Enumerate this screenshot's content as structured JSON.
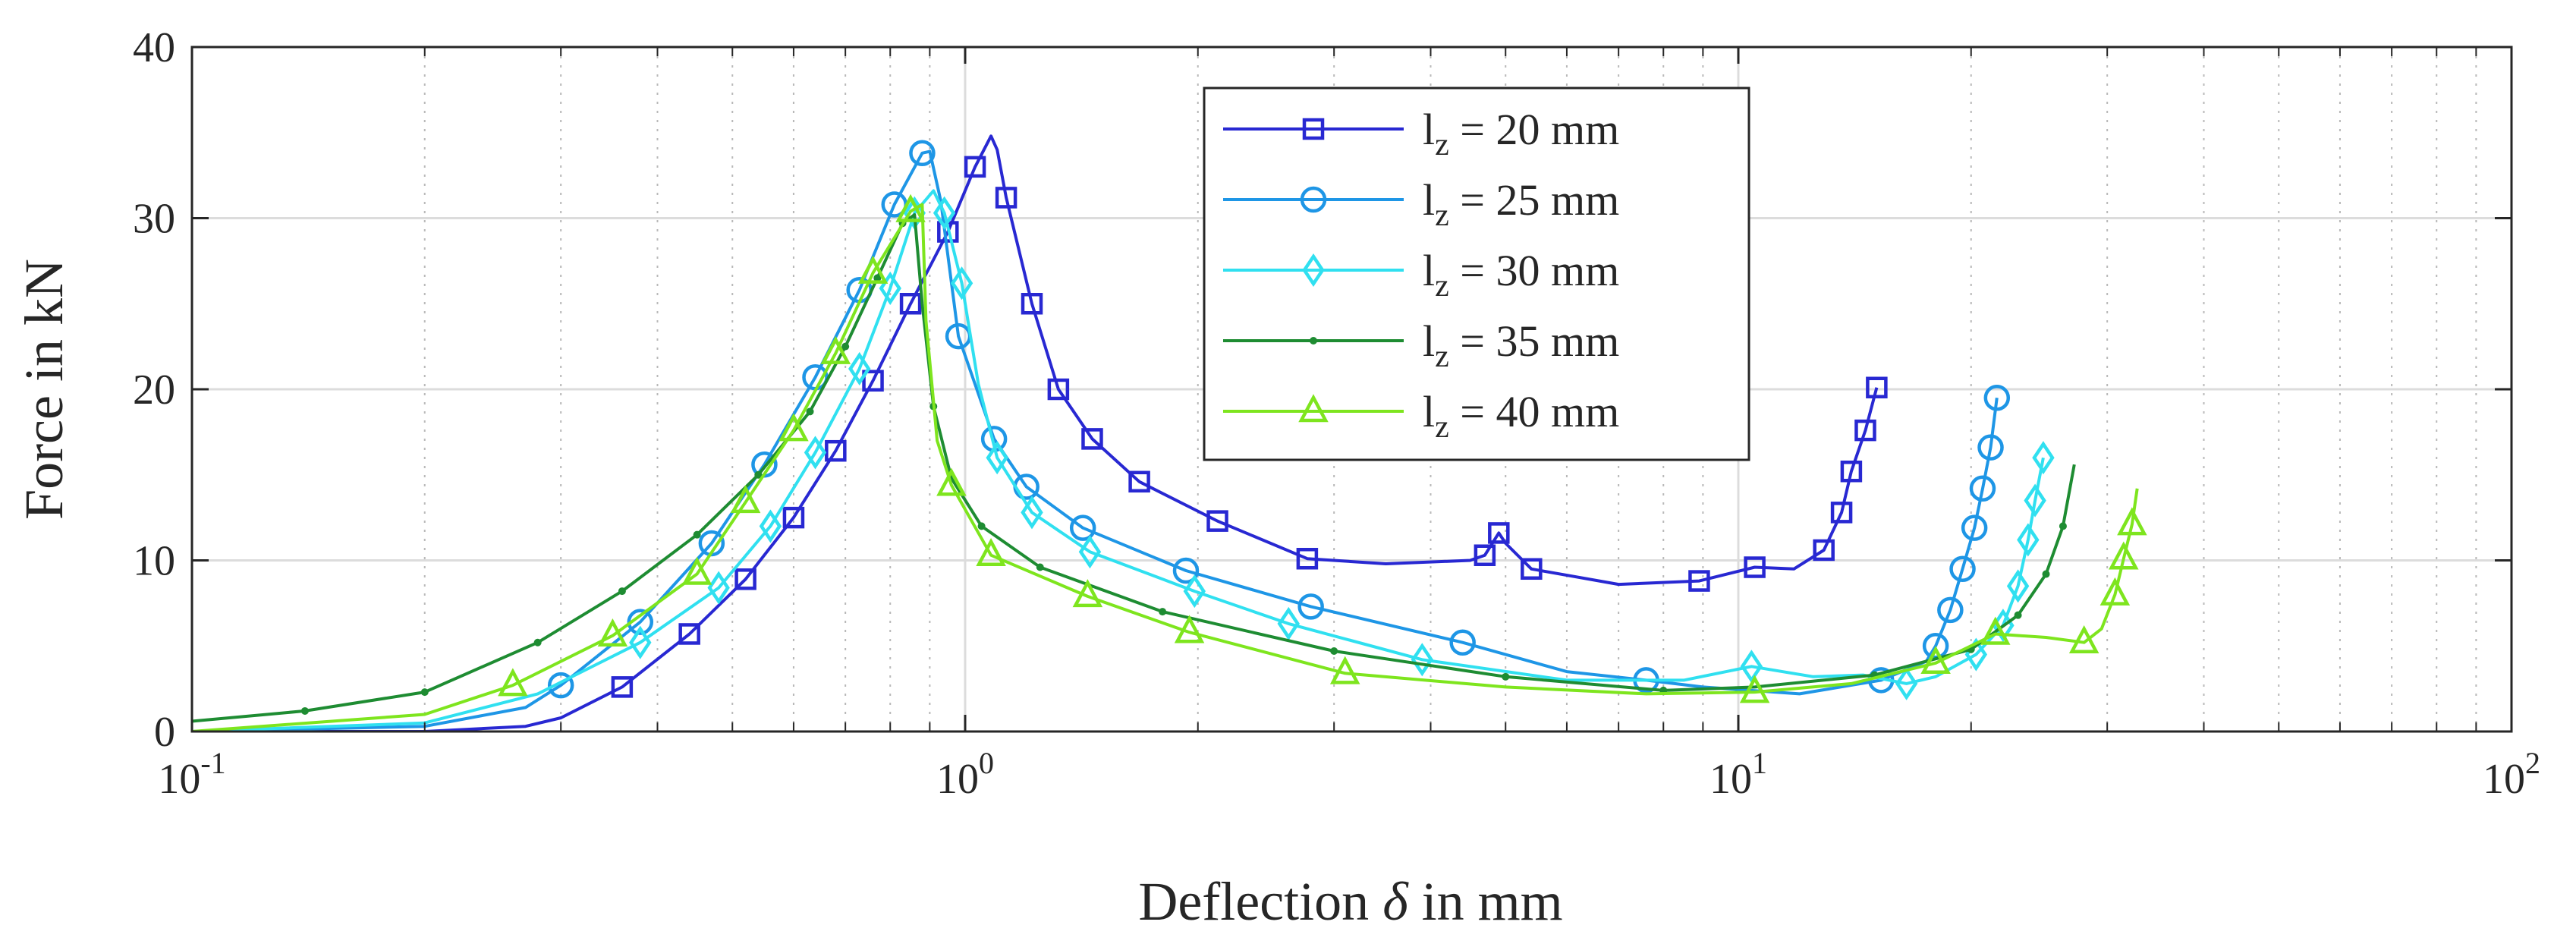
{
  "chart_data": {
    "type": "line",
    "xscale": "log",
    "xlim": [
      0.1,
      100
    ],
    "ylim": [
      0,
      40
    ],
    "grid": true,
    "legend_position": "top-center",
    "xlabel_prefix": "Deflection",
    "xlabel_symbol": "δ",
    "xlabel_suffix": "in mm",
    "ylabel": "Force in kN",
    "x_ticks": [
      {
        "value": 0.1,
        "base": "10",
        "exp": "-1"
      },
      {
        "value": 1,
        "base": "10",
        "exp": "0"
      },
      {
        "value": 10,
        "base": "10",
        "exp": "1"
      },
      {
        "value": 100,
        "base": "10",
        "exp": "2"
      }
    ],
    "y_ticks": [
      {
        "value": 0,
        "label": "0"
      },
      {
        "value": 10,
        "label": "10"
      },
      {
        "value": 20,
        "label": "20"
      },
      {
        "value": 30,
        "label": "30"
      },
      {
        "value": 40,
        "label": "40"
      }
    ],
    "series": [
      {
        "name": "lz = 20 mm",
        "legend_main": "l",
        "legend_sub": "z",
        "legend_rest": " = 20 mm",
        "color": "#2828d2",
        "marker": "square",
        "points": [
          [
            0.1,
            0
          ],
          [
            0.2,
            0
          ],
          [
            0.27,
            0.3
          ],
          [
            0.3,
            0.8
          ],
          [
            0.36,
            2.6
          ],
          [
            0.44,
            5.7
          ],
          [
            0.52,
            8.9
          ],
          [
            0.6,
            12.5
          ],
          [
            0.68,
            16.4
          ],
          [
            0.76,
            20.5
          ],
          [
            0.85,
            25
          ],
          [
            0.95,
            29.2
          ],
          [
            1.03,
            33
          ],
          [
            1.08,
            34.8
          ],
          [
            1.1,
            34
          ],
          [
            1.13,
            31.2
          ],
          [
            1.22,
            25
          ],
          [
            1.32,
            20
          ],
          [
            1.46,
            17.1
          ],
          [
            1.68,
            14.6
          ],
          [
            2.12,
            12.3
          ],
          [
            2.77,
            10.1
          ],
          [
            3.5,
            9.8
          ],
          [
            4.5,
            10
          ],
          [
            4.7,
            10.3
          ],
          [
            4.9,
            11.6
          ],
          [
            5,
            11
          ],
          [
            5.4,
            9.5
          ],
          [
            7,
            8.6
          ],
          [
            8.9,
            8.8
          ],
          [
            10.5,
            9.6
          ],
          [
            11.8,
            9.5
          ],
          [
            12.9,
            10.6
          ],
          [
            13.6,
            12.8
          ],
          [
            14,
            15.2
          ],
          [
            14.6,
            17.6
          ],
          [
            15.1,
            20.1
          ]
        ],
        "markers": [
          [
            0.36,
            2.6
          ],
          [
            0.44,
            5.7
          ],
          [
            0.52,
            8.9
          ],
          [
            0.6,
            12.5
          ],
          [
            0.68,
            16.4
          ],
          [
            0.76,
            20.5
          ],
          [
            0.85,
            25
          ],
          [
            0.95,
            29.2
          ],
          [
            1.03,
            33
          ],
          [
            1.13,
            31.2
          ],
          [
            1.22,
            25
          ],
          [
            1.32,
            20
          ],
          [
            1.46,
            17.1
          ],
          [
            1.68,
            14.6
          ],
          [
            2.12,
            12.3
          ],
          [
            2.77,
            10.1
          ],
          [
            4.7,
            10.3
          ],
          [
            4.9,
            11.6
          ],
          [
            5.4,
            9.5
          ],
          [
            8.9,
            8.8
          ],
          [
            10.5,
            9.6
          ],
          [
            12.9,
            10.6
          ],
          [
            13.6,
            12.8
          ],
          [
            14,
            15.2
          ],
          [
            14.6,
            17.6
          ],
          [
            15.1,
            20.1
          ]
        ]
      },
      {
        "name": "lz = 25 mm",
        "legend_main": "l",
        "legend_sub": "z",
        "legend_rest": " = 25 mm",
        "color": "#1e96e6",
        "marker": "circle",
        "points": [
          [
            0.1,
            0
          ],
          [
            0.2,
            0.3
          ],
          [
            0.27,
            1.4
          ],
          [
            0.3,
            2.7
          ],
          [
            0.38,
            6.4
          ],
          [
            0.47,
            11
          ],
          [
            0.55,
            15.6
          ],
          [
            0.64,
            20.7
          ],
          [
            0.73,
            25.8
          ],
          [
            0.81,
            30.8
          ],
          [
            0.88,
            33.8
          ],
          [
            0.9,
            33.9
          ],
          [
            0.93,
            31
          ],
          [
            0.98,
            23.1
          ],
          [
            1.09,
            17.1
          ],
          [
            1.2,
            14.3
          ],
          [
            1.42,
            11.9
          ],
          [
            1.93,
            9.4
          ],
          [
            2.8,
            7.3
          ],
          [
            4.4,
            5.2
          ],
          [
            6,
            3.5
          ],
          [
            7.6,
            3
          ],
          [
            9,
            2.6
          ],
          [
            12,
            2.2
          ],
          [
            15.3,
            3
          ],
          [
            17.5,
            4.1
          ],
          [
            18,
            5
          ],
          [
            18.8,
            7.1
          ],
          [
            19.5,
            9.5
          ],
          [
            20.2,
            11.9
          ],
          [
            20.7,
            14.2
          ],
          [
            21.2,
            16.6
          ],
          [
            21.6,
            19.5
          ]
        ],
        "markers": [
          [
            0.3,
            2.7
          ],
          [
            0.38,
            6.4
          ],
          [
            0.47,
            11
          ],
          [
            0.55,
            15.6
          ],
          [
            0.64,
            20.7
          ],
          [
            0.73,
            25.8
          ],
          [
            0.81,
            30.8
          ],
          [
            0.88,
            33.8
          ],
          [
            0.98,
            23.1
          ],
          [
            1.09,
            17.1
          ],
          [
            1.2,
            14.3
          ],
          [
            1.42,
            11.9
          ],
          [
            1.93,
            9.4
          ],
          [
            2.8,
            7.3
          ],
          [
            4.4,
            5.2
          ],
          [
            7.6,
            3
          ],
          [
            15.3,
            3
          ],
          [
            18,
            5
          ],
          [
            18.8,
            7.1
          ],
          [
            19.5,
            9.5
          ],
          [
            20.2,
            11.9
          ],
          [
            20.7,
            14.2
          ],
          [
            21.2,
            16.6
          ],
          [
            21.6,
            19.5
          ]
        ]
      },
      {
        "name": "lz = 30 mm",
        "legend_main": "l",
        "legend_sub": "z",
        "legend_rest": " = 30 mm",
        "color": "#30e0f0",
        "marker": "diamond",
        "points": [
          [
            0.1,
            0
          ],
          [
            0.2,
            0.5
          ],
          [
            0.28,
            2.2
          ],
          [
            0.38,
            5.2
          ],
          [
            0.48,
            8.4
          ],
          [
            0.56,
            12
          ],
          [
            0.64,
            16.3
          ],
          [
            0.73,
            21.2
          ],
          [
            0.8,
            25.9
          ],
          [
            0.86,
            30.3
          ],
          [
            0.91,
            31.6
          ],
          [
            0.94,
            30.3
          ],
          [
            0.99,
            26.2
          ],
          [
            1.04,
            20.3
          ],
          [
            1.1,
            16
          ],
          [
            1.22,
            12.8
          ],
          [
            1.45,
            10.5
          ],
          [
            1.98,
            8.2
          ],
          [
            2.62,
            6.3
          ],
          [
            3.9,
            4.2
          ],
          [
            6,
            3
          ],
          [
            8.5,
            3
          ],
          [
            10.4,
            3.8
          ],
          [
            12.5,
            3.2
          ],
          [
            14.5,
            3.3
          ],
          [
            16.5,
            2.8
          ],
          [
            18,
            3.2
          ],
          [
            20.3,
            4.5
          ],
          [
            22,
            6.2
          ],
          [
            23,
            8.5
          ],
          [
            23.7,
            11.2
          ],
          [
            24.2,
            13.5
          ],
          [
            24.8,
            16
          ]
        ],
        "markers": [
          [
            0.38,
            5.2
          ],
          [
            0.48,
            8.4
          ],
          [
            0.56,
            12
          ],
          [
            0.64,
            16.3
          ],
          [
            0.73,
            21.2
          ],
          [
            0.8,
            25.9
          ],
          [
            0.86,
            30.3
          ],
          [
            0.94,
            30.3
          ],
          [
            0.99,
            26.2
          ],
          [
            1.1,
            16
          ],
          [
            1.22,
            12.8
          ],
          [
            1.45,
            10.5
          ],
          [
            1.98,
            8.2
          ],
          [
            2.62,
            6.3
          ],
          [
            3.9,
            4.2
          ],
          [
            10.4,
            3.8
          ],
          [
            16.5,
            2.8
          ],
          [
            20.3,
            4.5
          ],
          [
            22,
            6.2
          ],
          [
            23,
            8.5
          ],
          [
            23.7,
            11.2
          ],
          [
            24.2,
            13.5
          ],
          [
            24.8,
            16
          ]
        ]
      },
      {
        "name": "lz = 35 mm",
        "legend_main": "l",
        "legend_sub": "z",
        "legend_rest": " = 35 mm",
        "color": "#1e8c32",
        "marker": "dot",
        "points": [
          [
            0.1,
            0.6
          ],
          [
            0.14,
            1.2
          ],
          [
            0.2,
            2.3
          ],
          [
            0.28,
            5.2
          ],
          [
            0.36,
            8.2
          ],
          [
            0.45,
            11.5
          ],
          [
            0.54,
            15
          ],
          [
            0.63,
            18.7
          ],
          [
            0.7,
            22.5
          ],
          [
            0.77,
            26.5
          ],
          [
            0.83,
            29.7
          ],
          [
            0.86,
            30.2
          ],
          [
            0.88,
            25
          ],
          [
            0.91,
            19
          ],
          [
            0.96,
            14.8
          ],
          [
            1.05,
            12
          ],
          [
            1.25,
            9.6
          ],
          [
            1.8,
            7
          ],
          [
            3,
            4.7
          ],
          [
            5,
            3.2
          ],
          [
            8,
            2.4
          ],
          [
            10.5,
            2.6
          ],
          [
            15,
            3.3
          ],
          [
            20,
            4.8
          ],
          [
            23,
            6.8
          ],
          [
            25,
            9.2
          ],
          [
            26.3,
            12
          ],
          [
            27.2,
            15.6
          ]
        ],
        "markers": [
          [
            0.14,
            1.2
          ],
          [
            0.2,
            2.3
          ],
          [
            0.28,
            5.2
          ],
          [
            0.36,
            8.2
          ],
          [
            0.45,
            11.5
          ],
          [
            0.54,
            15
          ],
          [
            0.63,
            18.7
          ],
          [
            0.7,
            22.5
          ],
          [
            0.77,
            26.5
          ],
          [
            0.83,
            29.7
          ],
          [
            0.91,
            19
          ],
          [
            1.05,
            12
          ],
          [
            1.25,
            9.6
          ],
          [
            1.8,
            7
          ],
          [
            3,
            4.7
          ],
          [
            5,
            3.2
          ],
          [
            8,
            2.4
          ],
          [
            15,
            3.3
          ],
          [
            20,
            4.8
          ],
          [
            23,
            6.8
          ],
          [
            25,
            9.2
          ],
          [
            26.3,
            12
          ]
        ]
      },
      {
        "name": "lz = 40 mm",
        "legend_main": "l",
        "legend_sub": "z",
        "legend_rest": " = 40 mm",
        "color": "#7ee51e",
        "marker": "triangle",
        "points": [
          [
            0.1,
            0
          ],
          [
            0.2,
            1
          ],
          [
            0.26,
            2.7
          ],
          [
            0.35,
            5.6
          ],
          [
            0.45,
            9.2
          ],
          [
            0.52,
            13.4
          ],
          [
            0.6,
            17.6
          ],
          [
            0.68,
            22.1
          ],
          [
            0.76,
            26.8
          ],
          [
            0.85,
            30.4
          ],
          [
            0.88,
            30.8
          ],
          [
            0.89,
            24
          ],
          [
            0.92,
            17
          ],
          [
            0.96,
            14.4
          ],
          [
            1.08,
            10.3
          ],
          [
            1.44,
            7.9
          ],
          [
            1.95,
            5.8
          ],
          [
            3.1,
            3.4
          ],
          [
            5,
            2.6
          ],
          [
            7.6,
            2.2
          ],
          [
            10.5,
            2.3
          ],
          [
            14,
            2.8
          ],
          [
            18,
            4
          ],
          [
            21.5,
            5.7
          ],
          [
            25,
            5.5
          ],
          [
            28,
            5.2
          ],
          [
            29.5,
            6
          ],
          [
            30.7,
            8
          ],
          [
            31.5,
            10.1
          ],
          [
            32.3,
            12.1
          ],
          [
            32.8,
            14.2
          ]
        ],
        "markers": [
          [
            0.26,
            2.7
          ],
          [
            0.35,
            5.6
          ],
          [
            0.45,
            9.2
          ],
          [
            0.52,
            13.4
          ],
          [
            0.6,
            17.6
          ],
          [
            0.68,
            22.1
          ],
          [
            0.76,
            26.8
          ],
          [
            0.85,
            30.4
          ],
          [
            0.96,
            14.4
          ],
          [
            1.08,
            10.3
          ],
          [
            1.44,
            7.9
          ],
          [
            1.95,
            5.8
          ],
          [
            3.1,
            3.4
          ],
          [
            10.5,
            2.3
          ],
          [
            18,
            4
          ],
          [
            21.5,
            5.7
          ],
          [
            28,
            5.2
          ],
          [
            30.7,
            8
          ],
          [
            31.5,
            10.1
          ],
          [
            32.3,
            12.1
          ]
        ]
      }
    ]
  }
}
